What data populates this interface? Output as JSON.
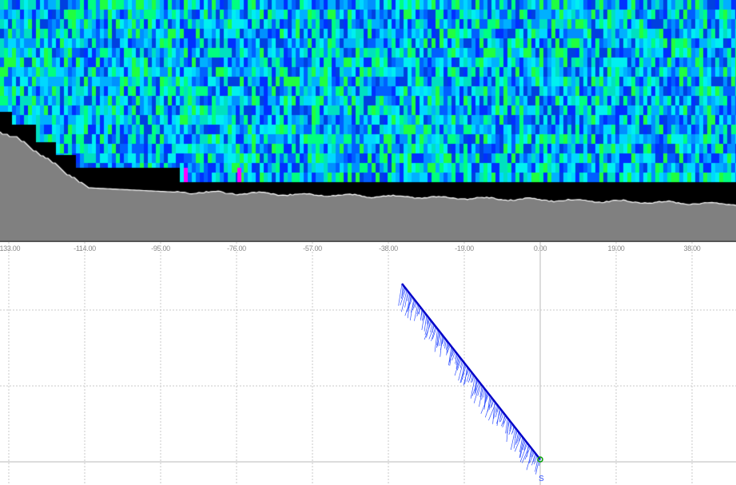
{
  "profile_view": {
    "colors": {
      "low": "#0030ff",
      "mid": "#00c8ff",
      "high": "#00ff60",
      "outlier": "#ff00ff",
      "bottom_fill": "#808080",
      "below_range": "#000000",
      "bottom_line": "#ffffff"
    }
  },
  "distance_axis": {
    "ticks": [
      {
        "value": -133,
        "label": "-133.00"
      },
      {
        "value": -114,
        "label": "-114.00"
      },
      {
        "value": -95,
        "label": "-95.00"
      },
      {
        "value": -76,
        "label": "-76.00"
      },
      {
        "value": -57,
        "label": "-57.00"
      },
      {
        "value": -38,
        "label": "-38.00"
      },
      {
        "value": -19,
        "label": "-19.00"
      },
      {
        "value": 0,
        "label": "0.00"
      },
      {
        "value": 19,
        "label": "19.00"
      },
      {
        "value": 38,
        "label": "38.00"
      }
    ]
  },
  "plan_view": {
    "start_marker": "S",
    "track_color": "#0000c8",
    "vector_color": "#3050ff",
    "start_color": "#00a000"
  }
}
